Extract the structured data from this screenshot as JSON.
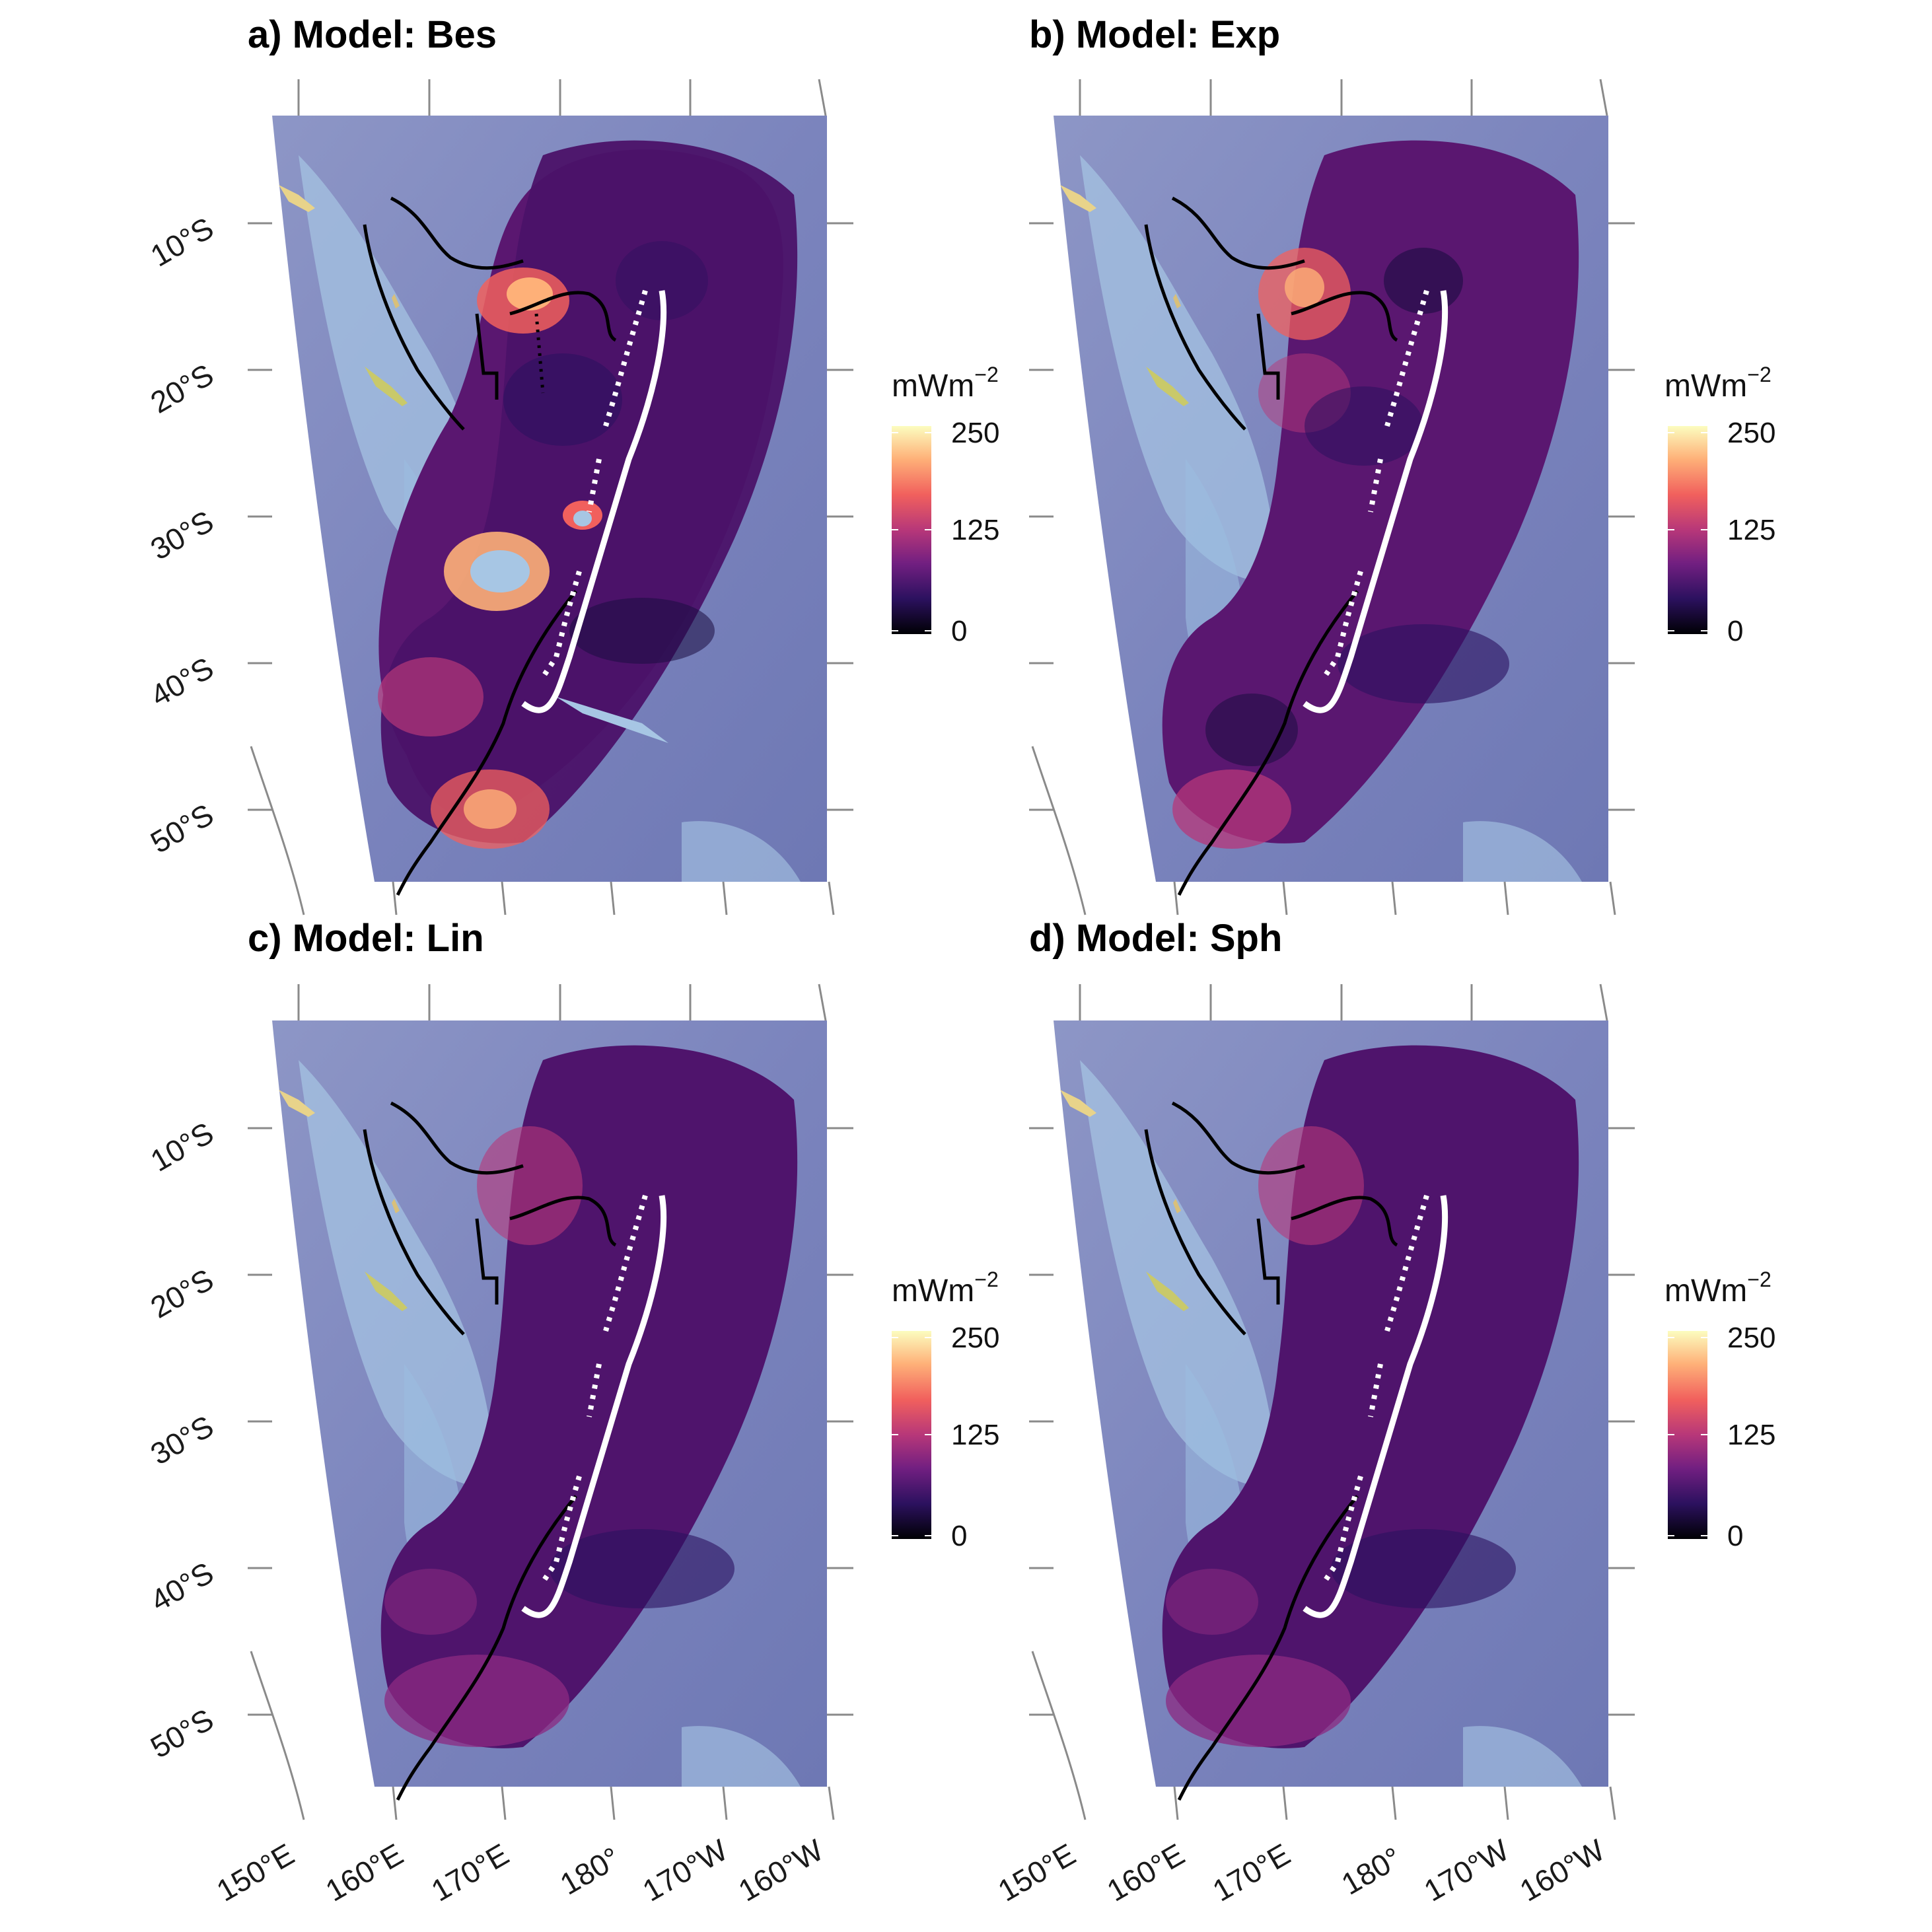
{
  "figure": {
    "panels": [
      {
        "id": "a",
        "title": "a) Model: Bes",
        "model": "Bes",
        "show_lat_labels": true,
        "show_lon_labels": false
      },
      {
        "id": "b",
        "title": "b) Model: Exp",
        "model": "Exp",
        "show_lat_labels": false,
        "show_lon_labels": false
      },
      {
        "id": "c",
        "title": "c) Model: Lin",
        "model": "Lin",
        "show_lat_labels": true,
        "show_lon_labels": true
      },
      {
        "id": "d",
        "title": "d) Model: Sph",
        "model": "Sph",
        "show_lat_labels": false,
        "show_lon_labels": true
      }
    ],
    "lat_labels": [
      "10°S",
      "20°S",
      "30°S",
      "40°S",
      "50°S"
    ],
    "lon_labels": [
      "150°E",
      "160°E",
      "170°E",
      "180°",
      "170°W",
      "160°W"
    ],
    "legend": {
      "title": "mWm",
      "title_exponent": "−2",
      "ticks": [
        "250",
        "125",
        "0"
      ],
      "range": [
        0,
        250
      ],
      "colors": [
        "#000004",
        "#2c115f",
        "#721f81",
        "#b73779",
        "#f1605d",
        "#feb078",
        "#fcfdbf"
      ]
    },
    "colors": {
      "background_ocean": "#6d77b5",
      "hotspot_bes": "#feb078",
      "trench_line": "#ffffff",
      "plate_boundary": "#000000"
    }
  }
}
